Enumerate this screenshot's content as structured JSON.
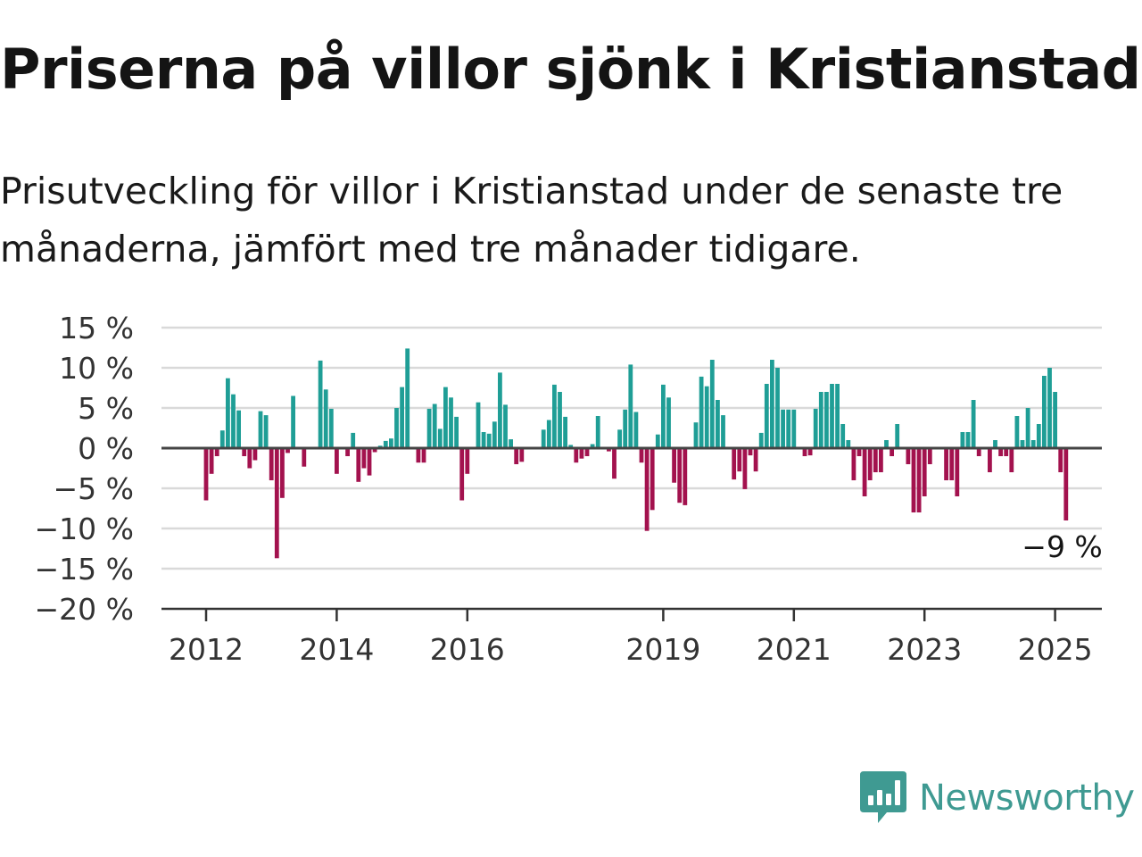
{
  "title": "Priserna på villor sjönk i Kristianstad",
  "subtitle": "Prisutveckling för villor i Kristianstad under de senaste tre månaderna, jämfört med tre månader tidigare.",
  "brand": {
    "name": "Newsworthy",
    "logo_icon": "bar-chart-speech-bubble-icon",
    "color": "#3f9a92"
  },
  "chart_data": {
    "type": "bar",
    "title": "Priserna på villor sjönk i Kristianstad",
    "xlabel": "",
    "ylabel": "",
    "ylim": [
      -20,
      15
    ],
    "y_ticks": [
      15,
      10,
      5,
      0,
      -5,
      -10,
      -15,
      -20
    ],
    "y_tick_labels": [
      "15 %",
      "10 %",
      "5 %",
      "0 %",
      "−5 %",
      "−10 %",
      "−15 %",
      "−20 %"
    ],
    "x_ticks": [
      {
        "label": "2012",
        "month_index": 0
      },
      {
        "label": "2014",
        "month_index": 24
      },
      {
        "label": "2016",
        "month_index": 48
      },
      {
        "label": "2019",
        "month_index": 84
      },
      {
        "label": "2021",
        "month_index": 108
      },
      {
        "label": "2023",
        "month_index": 132
      },
      {
        "label": "2025",
        "month_index": 156
      }
    ],
    "grid": true,
    "colors": {
      "positive": "#1f9e96",
      "negative": "#a3124e",
      "grid": "#d9d9d9",
      "zero_line": "#444444"
    },
    "start": "2012-01",
    "frequency": "monthly",
    "values": [
      -6.5,
      -3.2,
      -1,
      2.2,
      8.7,
      6.7,
      4.7,
      -1,
      -2.5,
      -1.5,
      4.6,
      4.1,
      -4,
      -13.7,
      -6.2,
      -0.6,
      6.5,
      0,
      -2.3,
      0,
      0,
      10.9,
      7.3,
      4.9,
      -3.2,
      0,
      -1,
      1.9,
      -4.2,
      -2.5,
      -3.4,
      -0.5,
      0.3,
      0.9,
      1.2,
      5,
      7.6,
      12.4,
      0,
      -1.8,
      -1.8,
      4.9,
      5.5,
      2.4,
      7.6,
      6.3,
      3.9,
      -6.5,
      -3.2,
      0,
      5.7,
      2,
      1.8,
      3.3,
      9.4,
      5.4,
      1.1,
      -2,
      -1.7,
      0,
      0,
      0,
      2.3,
      3.5,
      7.9,
      7,
      3.9,
      0.4,
      -1.8,
      -1.3,
      -1,
      0.5,
      4,
      0,
      -0.4,
      -3.8,
      2.3,
      4.8,
      10.4,
      4.5,
      -1.8,
      -10.3,
      -7.7,
      1.7,
      7.9,
      6.3,
      -4.3,
      -6.8,
      -7.1,
      0,
      3.2,
      8.9,
      7.7,
      11,
      6,
      4.1,
      0,
      -3.9,
      -2.9,
      -5.1,
      -0.9,
      -2.9,
      1.9,
      8,
      11,
      10,
      4.8,
      4.8,
      4.8,
      0,
      -1,
      -0.9,
      4.9,
      7,
      7,
      8,
      8,
      3,
      1,
      -4,
      -1,
      -6,
      -4,
      -3,
      -3,
      1,
      -1,
      3,
      0,
      -2,
      -8,
      -8,
      -6,
      -2,
      0,
      0,
      -4,
      -4,
      -6,
      2,
      2,
      6,
      -1,
      0,
      -3,
      1,
      -1,
      -1,
      -3,
      4,
      1,
      5,
      1,
      3,
      9,
      10,
      7,
      -3,
      -9
    ],
    "annotations": [
      {
        "text": "−9 %",
        "target": "last"
      }
    ]
  }
}
